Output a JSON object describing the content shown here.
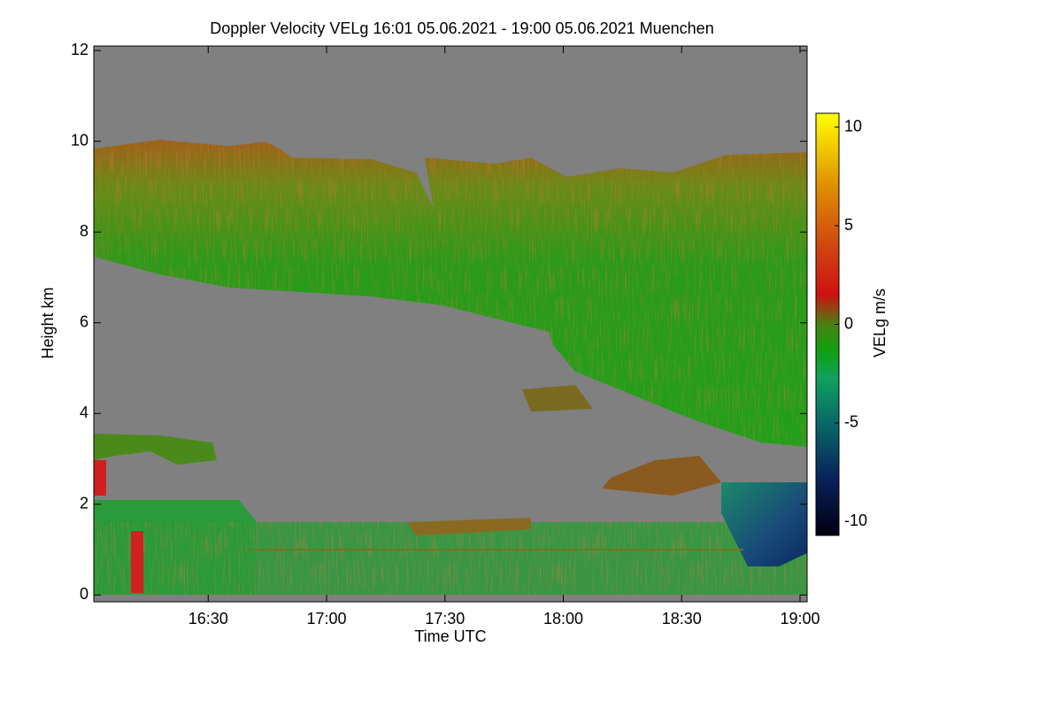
{
  "chart_data": {
    "type": "heatmap",
    "title": "Doppler Velocity VELg   16:01 05.06.2021 - 19:00 05.06.2021 Muenchen",
    "x_label": "Time UTC",
    "y_label": "Height km",
    "colorbar_label": "VELg m/s",
    "xlim": [
      16.0167,
      19.03
    ],
    "xticks": [
      {
        "value": 16.5,
        "label": "16:30"
      },
      {
        "value": 17.0,
        "label": "17:00"
      },
      {
        "value": 17.5,
        "label": "17:30"
      },
      {
        "value": 18.0,
        "label": "18:00"
      },
      {
        "value": 18.5,
        "label": "18:30"
      },
      {
        "value": 19.0,
        "label": "19:00"
      }
    ],
    "ylim": [
      -0.15,
      12.1
    ],
    "yticks": [
      0,
      2,
      4,
      6,
      8,
      10,
      12
    ],
    "clim": [
      -10.7,
      10.7
    ],
    "cticks": [
      -10,
      -5,
      0,
      5,
      10
    ]
  }
}
